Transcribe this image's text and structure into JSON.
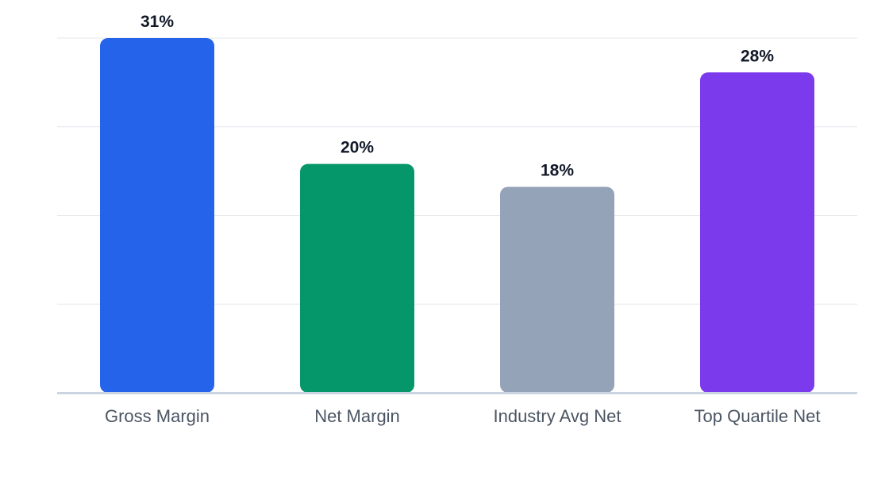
{
  "chart_data": {
    "type": "bar",
    "categories": [
      "Gross Margin",
      "Net Margin",
      "Industry Avg Net",
      "Top Quartile Net"
    ],
    "values": [
      31,
      20,
      18,
      28
    ],
    "value_labels": [
      "31%",
      "20%",
      "18%",
      "28%"
    ],
    "unit": "%",
    "colors": [
      "#2563eb",
      "#059669",
      "#94a3b8",
      "#7c3aed"
    ],
    "ylim": [
      0,
      31
    ],
    "y_gridlines": [
      0,
      7.75,
      15.5,
      23.25,
      31
    ],
    "grid": true,
    "legend": "none",
    "title": "",
    "xlabel": "",
    "ylabel": ""
  },
  "colors": {
    "grid": "#e5e7eb",
    "baseline": "#cbd5e1",
    "value_text": "#111827",
    "category_text": "#4b5563"
  }
}
